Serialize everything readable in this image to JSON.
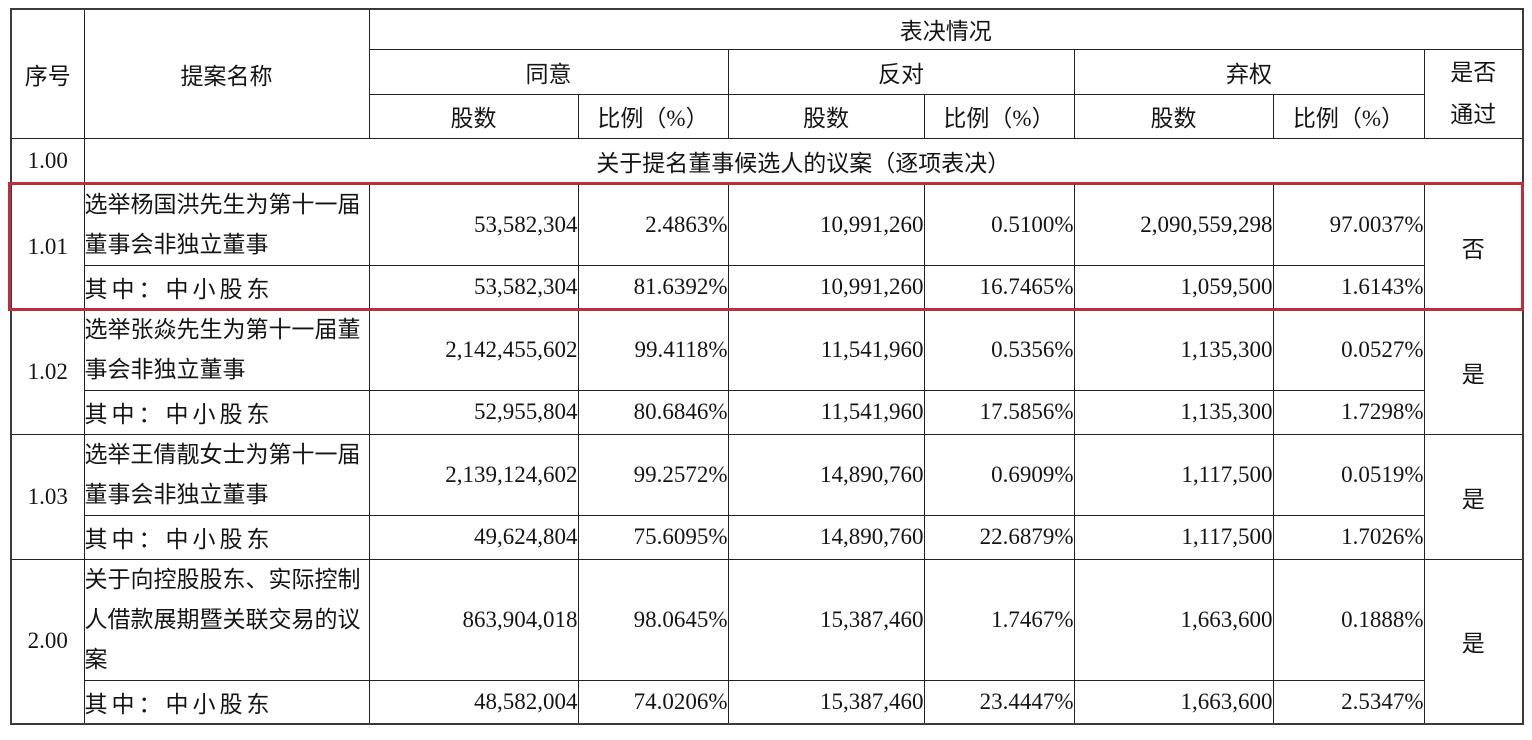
{
  "table": {
    "header": {
      "seq": "序号",
      "proposal": "提案名称",
      "vote_status": "表决情况",
      "agree": "同意",
      "against": "反对",
      "abstain": "弃权",
      "pass_line1": "是否",
      "pass_line2": "通过",
      "shares": "股数",
      "ratio": "比例（%）"
    },
    "section_row": {
      "seq": "1.00",
      "title": "关于提名董事候选人的议案（逐项表决）"
    },
    "minor_label": "其中：中小股东",
    "proposals": [
      {
        "seq": "1.01",
        "name": "选举杨国洪先生为第十一届董事会非独立董事",
        "agree_shares": "53,582,304",
        "agree_ratio": "2.4863%",
        "against_shares": "10,991,260",
        "against_ratio": "0.5100%",
        "abstain_shares": "2,090,559,298",
        "abstain_ratio": "97.0037%",
        "passed": "否",
        "minor_agree_shares": "53,582,304",
        "minor_agree_ratio": "81.6392%",
        "minor_against_shares": "10,991,260",
        "minor_against_ratio": "16.7465%",
        "minor_abstain_shares": "1,059,500",
        "minor_abstain_ratio": "1.6143%"
      },
      {
        "seq": "1.02",
        "name": "选举张焱先生为第十一届董事会非独立董事",
        "agree_shares": "2,142,455,602",
        "agree_ratio": "99.4118%",
        "against_shares": "11,541,960",
        "against_ratio": "0.5356%",
        "abstain_shares": "1,135,300",
        "abstain_ratio": "0.0527%",
        "passed": "是",
        "minor_agree_shares": "52,955,804",
        "minor_agree_ratio": "80.6846%",
        "minor_against_shares": "11,541,960",
        "minor_against_ratio": "17.5856%",
        "minor_abstain_shares": "1,135,300",
        "minor_abstain_ratio": "1.7298%"
      },
      {
        "seq": "1.03",
        "name": "选举王倩靓女士为第十一届董事会非独立董事",
        "agree_shares": "2,139,124,602",
        "agree_ratio": "99.2572%",
        "against_shares": "14,890,760",
        "against_ratio": "0.6909%",
        "abstain_shares": "1,117,500",
        "abstain_ratio": "0.0519%",
        "passed": "是",
        "minor_agree_shares": "49,624,804",
        "minor_agree_ratio": "75.6095%",
        "minor_against_shares": "14,890,760",
        "minor_against_ratio": "22.6879%",
        "minor_abstain_shares": "1,117,500",
        "minor_abstain_ratio": "1.7026%"
      },
      {
        "seq": "2.00",
        "name": "关于向控股股东、实际控制人借款展期暨关联交易的议案",
        "agree_shares": "863,904,018",
        "agree_ratio": "98.0645%",
        "against_shares": "15,387,460",
        "against_ratio": "1.7467%",
        "abstain_shares": "1,663,600",
        "abstain_ratio": "0.1888%",
        "passed": "是",
        "minor_agree_shares": "48,582,004",
        "minor_agree_ratio": "74.0206%",
        "minor_against_shares": "15,387,460",
        "minor_against_ratio": "23.4447%",
        "minor_abstain_shares": "1,663,600",
        "minor_abstain_ratio": "2.5347%"
      }
    ]
  },
  "annotation": {
    "type": "highlight-box",
    "target_seq": "1.01",
    "target_index": 0,
    "color": "#be2d3c"
  }
}
